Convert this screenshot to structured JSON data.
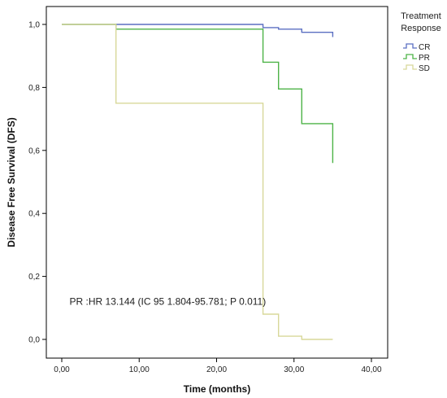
{
  "chart_data": {
    "type": "line",
    "step": true,
    "xlabel": "Time (months)",
    "ylabel": "Disease Free Survival (DFS)",
    "xlim": [
      0,
      40
    ],
    "ylim": [
      0,
      1.0
    ],
    "x_ticks": [
      0,
      10,
      20,
      30,
      40
    ],
    "x_tick_labels": [
      "0,00",
      "10,00",
      "20,00",
      "30,00",
      "40,00"
    ],
    "y_ticks": [
      0,
      0.2,
      0.4,
      0.6,
      0.8,
      1.0
    ],
    "y_tick_labels": [
      "0,0",
      "0,2",
      "0,4",
      "0,6",
      "0,8",
      "1,0"
    ],
    "grid": false,
    "legend": {
      "title_lines": [
        "Treatment",
        "Response"
      ],
      "placement": "right"
    },
    "series": [
      {
        "name": "CR",
        "color": "#5b6fc2",
        "points": [
          [
            0,
            1.0
          ],
          [
            26,
            1.0
          ],
          [
            26,
            0.99
          ],
          [
            28,
            0.99
          ],
          [
            28,
            0.985
          ],
          [
            31,
            0.985
          ],
          [
            31,
            0.975
          ],
          [
            35,
            0.975
          ],
          [
            35,
            0.96
          ]
        ]
      },
      {
        "name": "PR",
        "color": "#4db347",
        "points": [
          [
            0,
            1.0
          ],
          [
            7,
            1.0
          ],
          [
            7,
            0.985
          ],
          [
            26,
            0.985
          ],
          [
            26,
            0.88
          ],
          [
            28,
            0.88
          ],
          [
            28,
            0.795
          ],
          [
            31,
            0.795
          ],
          [
            31,
            0.685
          ],
          [
            35,
            0.685
          ],
          [
            35,
            0.56
          ]
        ]
      },
      {
        "name": "SD",
        "color": "#d8d89a",
        "points": [
          [
            0,
            1.0
          ],
          [
            7,
            1.0
          ],
          [
            7,
            0.75
          ],
          [
            26,
            0.75
          ],
          [
            26,
            0.08
          ],
          [
            28,
            0.08
          ],
          [
            28,
            0.01
          ],
          [
            31,
            0.01
          ],
          [
            31,
            0.0
          ],
          [
            35,
            0.0
          ]
        ]
      }
    ],
    "annotations": [
      {
        "text": "PR :HR  13.144 (IC 95 1.804-95.781; P 0.011)",
        "x": 1,
        "y": 0.11
      }
    ]
  }
}
